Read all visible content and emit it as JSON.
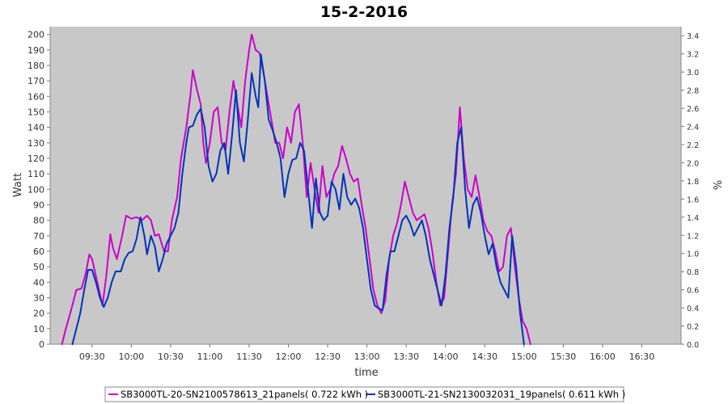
{
  "chart_data": {
    "type": "line",
    "title": "15-2-2016",
    "xlabel": "time",
    "ylabel": "Watt",
    "y2label": "%",
    "ylim": [
      0,
      205
    ],
    "y2lim": [
      0,
      3.5
    ],
    "yticks": [
      0,
      10,
      20,
      30,
      40,
      50,
      60,
      70,
      80,
      90,
      100,
      110,
      120,
      130,
      140,
      150,
      160,
      170,
      180,
      190,
      200
    ],
    "y2ticks": [
      "0.0",
      "0.2",
      "0.4",
      "0.6",
      "0.8",
      "1.0",
      "1.2",
      "1.4",
      "1.6",
      "1.8",
      "2.0",
      "2.2",
      "2.4",
      "2.6",
      "2.8",
      "3.0",
      "3.2",
      "3.4"
    ],
    "xlim": [
      "08:58",
      "17:00"
    ],
    "xticks": [
      "09:30",
      "10:00",
      "10:30",
      "11:00",
      "11:30",
      "12:00",
      "12:30",
      "13:00",
      "13:30",
      "14:00",
      "14:30",
      "15:00",
      "15:30",
      "16:00",
      "16:30"
    ],
    "grid": false,
    "legend_position": "bottom",
    "background": "#c8c8c8",
    "series": [
      {
        "name": "SB3000TL-20-SN2100578613_21panels( 0.722 kWh )",
        "color": "#cc00cc",
        "points": [
          [
            "09:07",
            0
          ],
          [
            "09:10",
            10
          ],
          [
            "09:14",
            22
          ],
          [
            "09:18",
            35
          ],
          [
            "09:22",
            36
          ],
          [
            "09:25",
            45
          ],
          [
            "09:28",
            58
          ],
          [
            "09:30",
            55
          ],
          [
            "09:34",
            40
          ],
          [
            "09:38",
            25
          ],
          [
            "09:41",
            45
          ],
          [
            "09:44",
            71
          ],
          [
            "09:46",
            62
          ],
          [
            "09:49",
            55
          ],
          [
            "09:53",
            70
          ],
          [
            "09:56",
            83
          ],
          [
            "10:00",
            81
          ],
          [
            "10:04",
            82
          ],
          [
            "10:08",
            80
          ],
          [
            "10:12",
            83
          ],
          [
            "10:15",
            80
          ],
          [
            "10:18",
            70
          ],
          [
            "10:21",
            71
          ],
          [
            "10:25",
            60
          ],
          [
            "10:28",
            60
          ],
          [
            "10:31",
            80
          ],
          [
            "10:35",
            95
          ],
          [
            "10:38",
            120
          ],
          [
            "10:42",
            140
          ],
          [
            "10:45",
            160
          ],
          [
            "10:47",
            177
          ],
          [
            "10:50",
            165
          ],
          [
            "10:53",
            155
          ],
          [
            "10:55",
            130
          ],
          [
            "10:57",
            117
          ],
          [
            "11:00",
            130
          ],
          [
            "11:03",
            150
          ],
          [
            "11:06",
            153
          ],
          [
            "11:09",
            130
          ],
          [
            "11:12",
            125
          ],
          [
            "11:15",
            150
          ],
          [
            "11:18",
            170
          ],
          [
            "11:21",
            155
          ],
          [
            "11:24",
            140
          ],
          [
            "11:27",
            170
          ],
          [
            "11:30",
            190
          ],
          [
            "11:32",
            200
          ],
          [
            "11:35",
            190
          ],
          [
            "11:38",
            188
          ],
          [
            "11:41",
            175
          ],
          [
            "11:44",
            160
          ],
          [
            "11:47",
            145
          ],
          [
            "11:50",
            130
          ],
          [
            "11:53",
            130
          ],
          [
            "11:56",
            120
          ],
          [
            "11:59",
            140
          ],
          [
            "12:02",
            130
          ],
          [
            "12:05",
            150
          ],
          [
            "12:08",
            155
          ],
          [
            "12:11",
            130
          ],
          [
            "12:14",
            95
          ],
          [
            "12:17",
            117
          ],
          [
            "12:20",
            100
          ],
          [
            "12:23",
            85
          ],
          [
            "12:26",
            115
          ],
          [
            "12:29",
            95
          ],
          [
            "12:32",
            100
          ],
          [
            "12:35",
            110
          ],
          [
            "12:38",
            115
          ],
          [
            "12:41",
            128
          ],
          [
            "12:44",
            120
          ],
          [
            "12:47",
            110
          ],
          [
            "12:50",
            105
          ],
          [
            "12:53",
            107
          ],
          [
            "12:56",
            90
          ],
          [
            "12:59",
            75
          ],
          [
            "13:02",
            55
          ],
          [
            "13:05",
            35
          ],
          [
            "13:08",
            25
          ],
          [
            "13:11",
            20
          ],
          [
            "13:14",
            28
          ],
          [
            "13:17",
            55
          ],
          [
            "13:20",
            70
          ],
          [
            "13:23",
            78
          ],
          [
            "13:26",
            90
          ],
          [
            "13:29",
            105
          ],
          [
            "13:32",
            95
          ],
          [
            "13:35",
            85
          ],
          [
            "13:38",
            80
          ],
          [
            "13:41",
            82
          ],
          [
            "13:44",
            84
          ],
          [
            "13:47",
            75
          ],
          [
            "13:50",
            60
          ],
          [
            "13:53",
            40
          ],
          [
            "13:56",
            25
          ],
          [
            "13:59",
            30
          ],
          [
            "14:02",
            60
          ],
          [
            "14:05",
            90
          ],
          [
            "14:08",
            110
          ],
          [
            "14:11",
            153
          ],
          [
            "14:14",
            120
          ],
          [
            "14:17",
            100
          ],
          [
            "14:20",
            95
          ],
          [
            "14:23",
            109
          ],
          [
            "14:26",
            95
          ],
          [
            "14:29",
            80
          ],
          [
            "14:32",
            73
          ],
          [
            "14:35",
            70
          ],
          [
            "14:38",
            60
          ],
          [
            "14:41",
            47
          ],
          [
            "14:44",
            50
          ],
          [
            "14:47",
            70
          ],
          [
            "14:50",
            75
          ],
          [
            "14:53",
            50
          ],
          [
            "14:56",
            30
          ],
          [
            "14:59",
            15
          ],
          [
            "15:02",
            10
          ],
          [
            "15:05",
            0
          ]
        ]
      },
      {
        "name": "SB3000TL-21-SN2130032031_19panels( 0.611 kWh )",
        "color": "#0033bb",
        "points": [
          [
            "09:15",
            0
          ],
          [
            "09:18",
            10
          ],
          [
            "09:21",
            20
          ],
          [
            "09:24",
            35
          ],
          [
            "09:27",
            48
          ],
          [
            "09:30",
            48
          ],
          [
            "09:33",
            40
          ],
          [
            "09:36",
            30
          ],
          [
            "09:39",
            24
          ],
          [
            "09:42",
            30
          ],
          [
            "09:45",
            40
          ],
          [
            "09:48",
            47
          ],
          [
            "09:52",
            47
          ],
          [
            "09:55",
            55
          ],
          [
            "09:58",
            59
          ],
          [
            "10:01",
            60
          ],
          [
            "10:04",
            68
          ],
          [
            "10:07",
            82
          ],
          [
            "10:10",
            70
          ],
          [
            "10:12",
            58
          ],
          [
            "10:15",
            70
          ],
          [
            "10:18",
            63
          ],
          [
            "10:21",
            47
          ],
          [
            "10:24",
            55
          ],
          [
            "10:27",
            65
          ],
          [
            "10:30",
            70
          ],
          [
            "10:33",
            75
          ],
          [
            "10:36",
            85
          ],
          [
            "10:39",
            110
          ],
          [
            "10:42",
            130
          ],
          [
            "10:44",
            140
          ],
          [
            "10:47",
            141
          ],
          [
            "10:50",
            148
          ],
          [
            "10:53",
            152
          ],
          [
            "10:56",
            140
          ],
          [
            "10:59",
            115
          ],
          [
            "11:02",
            105
          ],
          [
            "11:05",
            110
          ],
          [
            "11:08",
            125
          ],
          [
            "11:11",
            130
          ],
          [
            "11:14",
            110
          ],
          [
            "11:17",
            135
          ],
          [
            "11:20",
            164
          ],
          [
            "11:23",
            130
          ],
          [
            "11:26",
            118
          ],
          [
            "11:29",
            145
          ],
          [
            "11:32",
            175
          ],
          [
            "11:35",
            160
          ],
          [
            "11:37",
            153
          ],
          [
            "11:39",
            187
          ],
          [
            "11:42",
            170
          ],
          [
            "11:45",
            145
          ],
          [
            "11:48",
            138
          ],
          [
            "11:51",
            130
          ],
          [
            "11:54",
            120
          ],
          [
            "11:57",
            95
          ],
          [
            "12:00",
            110
          ],
          [
            "12:03",
            119
          ],
          [
            "12:06",
            120
          ],
          [
            "12:09",
            130
          ],
          [
            "12:12",
            125
          ],
          [
            "12:15",
            100
          ],
          [
            "12:18",
            75
          ],
          [
            "12:21",
            107
          ],
          [
            "12:24",
            85
          ],
          [
            "12:27",
            80
          ],
          [
            "12:30",
            83
          ],
          [
            "12:33",
            105
          ],
          [
            "12:36",
            100
          ],
          [
            "12:39",
            87
          ],
          [
            "12:42",
            110
          ],
          [
            "12:45",
            95
          ],
          [
            "12:48",
            90
          ],
          [
            "12:51",
            94
          ],
          [
            "12:54",
            88
          ],
          [
            "12:57",
            75
          ],
          [
            "13:00",
            55
          ],
          [
            "13:03",
            35
          ],
          [
            "13:06",
            25
          ],
          [
            "13:09",
            23
          ],
          [
            "13:12",
            22
          ],
          [
            "13:15",
            45
          ],
          [
            "13:18",
            60
          ],
          [
            "13:21",
            60
          ],
          [
            "13:24",
            70
          ],
          [
            "13:27",
            80
          ],
          [
            "13:30",
            83
          ],
          [
            "13:33",
            78
          ],
          [
            "13:36",
            70
          ],
          [
            "13:39",
            75
          ],
          [
            "13:42",
            80
          ],
          [
            "13:45",
            70
          ],
          [
            "13:48",
            55
          ],
          [
            "13:51",
            45
          ],
          [
            "13:54",
            35
          ],
          [
            "13:57",
            25
          ],
          [
            "14:00",
            45
          ],
          [
            "14:03",
            75
          ],
          [
            "14:06",
            95
          ],
          [
            "14:09",
            130
          ],
          [
            "14:12",
            140
          ],
          [
            "14:15",
            100
          ],
          [
            "14:18",
            75
          ],
          [
            "14:21",
            90
          ],
          [
            "14:24",
            95
          ],
          [
            "14:27",
            85
          ],
          [
            "14:30",
            70
          ],
          [
            "14:33",
            58
          ],
          [
            "14:36",
            65
          ],
          [
            "14:39",
            50
          ],
          [
            "14:42",
            40
          ],
          [
            "14:45",
            35
          ],
          [
            "14:48",
            30
          ],
          [
            "14:51",
            70
          ],
          [
            "14:54",
            50
          ],
          [
            "14:57",
            20
          ],
          [
            "15:00",
            0
          ]
        ]
      }
    ]
  }
}
